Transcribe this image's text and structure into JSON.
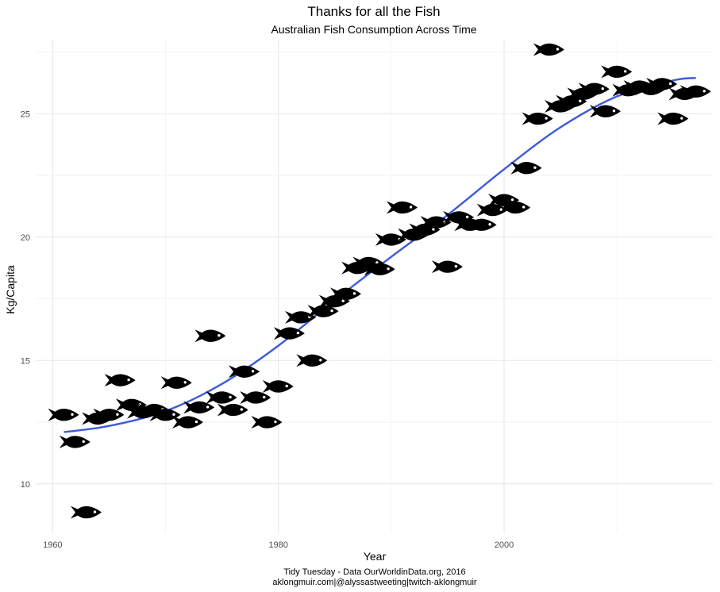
{
  "chart_data": {
    "type": "scatter",
    "title": "Thanks for all the Fish",
    "subtitle": "Australian Fish Consumption Across Time",
    "xlabel": "Year",
    "ylabel": "Kg/Capita",
    "xlim": [
      1958.5,
      2018.5
    ],
    "ylim": [
      8.0,
      28.0
    ],
    "x_ticks": [
      1960,
      1980,
      2000
    ],
    "x_tick_labels": [
      "1960",
      "1980",
      "2000"
    ],
    "y_ticks": [
      10,
      15,
      20,
      25
    ],
    "y_tick_labels": [
      "10",
      "15",
      "20",
      "25"
    ],
    "marker": "fish",
    "x": [
      1961,
      1962,
      1963,
      1964,
      1965,
      1966,
      1967,
      1968,
      1969,
      1970,
      1971,
      1972,
      1973,
      1974,
      1975,
      1976,
      1977,
      1978,
      1979,
      1980,
      1981,
      1982,
      1983,
      1984,
      1985,
      1986,
      1987,
      1988,
      1989,
      1990,
      1991,
      1992,
      1993,
      1994,
      1995,
      1996,
      1997,
      1998,
      1999,
      2000,
      2001,
      2002,
      2003,
      2004,
      2005,
      2006,
      2007,
      2008,
      2009,
      2010,
      2011,
      2012,
      2013,
      2014,
      2015,
      2016,
      2017
    ],
    "y": [
      12.8,
      11.7,
      8.85,
      12.65,
      12.8,
      14.2,
      13.2,
      12.9,
      13.0,
      12.8,
      14.1,
      12.5,
      13.1,
      16.0,
      13.5,
      13.0,
      14.55,
      13.5,
      12.5,
      13.95,
      16.1,
      16.75,
      15.0,
      17.0,
      17.4,
      17.7,
      18.75,
      18.95,
      18.7,
      19.9,
      21.2,
      20.1,
      20.3,
      20.6,
      18.8,
      20.8,
      20.5,
      20.5,
      21.1,
      21.5,
      21.2,
      22.8,
      24.8,
      27.6,
      25.3,
      25.5,
      25.8,
      26.0,
      25.1,
      26.7,
      25.95,
      26.1,
      26.0,
      26.2,
      24.8,
      25.8,
      25.9
    ],
    "smooth": {
      "method": "loess",
      "x": [
        1961,
        1965,
        1970,
        1975,
        1980,
        1985,
        1990,
        1995,
        2000,
        2005,
        2010,
        2015,
        2017
      ],
      "y": [
        12.1,
        12.35,
        12.95,
        14.05,
        15.6,
        17.45,
        19.2,
        20.9,
        22.75,
        24.45,
        25.7,
        26.35,
        26.45
      ]
    },
    "colors": {
      "points": "#000000",
      "smooth": "#3b5bdb",
      "grid": "#e6e6e6"
    },
    "caption": [
      "Tidy Tuesday - Data OurWorldinData.org, 2016",
      "aklongmuir.com|@alyssastweeting|twitch-aklongmuir"
    ]
  }
}
